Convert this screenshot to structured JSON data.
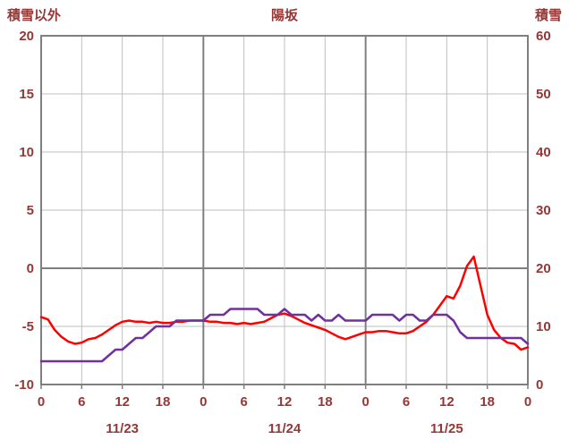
{
  "header": {
    "left_axis_title": "積雪以外",
    "chart_title": "陽坂",
    "right_axis_title": "積雪"
  },
  "colors": {
    "text": "#953735",
    "grid": "#bfbfbf",
    "axis": "#7f7f7f",
    "series_red": "#ff0000",
    "series_purple": "#7030a0",
    "background": "#ffffff"
  },
  "chart_data": {
    "type": "line",
    "title": "陽坂",
    "left_axis": {
      "label": "積雪以外",
      "min": -10,
      "max": 20,
      "ticks": [
        20,
        15,
        10,
        5,
        0,
        -5,
        -10
      ]
    },
    "right_axis": {
      "label": "積雪",
      "min": 0,
      "max": 60,
      "ticks": [
        60,
        50,
        40,
        30,
        20,
        10,
        0
      ]
    },
    "x_axis": {
      "hours_total": 72,
      "tick_step": 6,
      "tick_labels": [
        "0",
        "6",
        "12",
        "18",
        "0",
        "6",
        "12",
        "18",
        "0",
        "6",
        "12",
        "18",
        "0"
      ],
      "date_labels": [
        {
          "label": "11/23",
          "hour": 12
        },
        {
          "label": "11/24",
          "hour": 36
        },
        {
          "label": "11/25",
          "hour": 60
        }
      ]
    },
    "series": [
      {
        "name": "積雪以外",
        "axis": "left",
        "color": "#ff0000",
        "values": [
          -4.2,
          -4.4,
          -5.3,
          -5.9,
          -6.3,
          -6.5,
          -6.4,
          -6.1,
          -6.0,
          -5.7,
          -5.3,
          -4.9,
          -4.6,
          -4.5,
          -4.6,
          -4.6,
          -4.7,
          -4.6,
          -4.7,
          -4.7,
          -4.6,
          -4.6,
          -4.5,
          -4.5,
          -4.5,
          -4.6,
          -4.6,
          -4.7,
          -4.7,
          -4.8,
          -4.7,
          -4.8,
          -4.7,
          -4.6,
          -4.3,
          -4.0,
          -3.9,
          -4.1,
          -4.4,
          -4.7,
          -4.9,
          -5.1,
          -5.3,
          -5.6,
          -5.9,
          -6.1,
          -5.9,
          -5.7,
          -5.5,
          -5.5,
          -5.4,
          -5.4,
          -5.5,
          -5.6,
          -5.6,
          -5.4,
          -5.0,
          -4.6,
          -4.0,
          -3.2,
          -2.4,
          -2.6,
          -1.5,
          0.2,
          1.0,
          -1.5,
          -4.0,
          -5.3,
          -6.0,
          -6.4,
          -6.5,
          -7.0,
          -6.8
        ]
      },
      {
        "name": "積雪",
        "axis": "right",
        "color": "#7030a0",
        "values": [
          4,
          4,
          4,
          4,
          4,
          4,
          4,
          4,
          4,
          4,
          5,
          6,
          6,
          7,
          8,
          8,
          9,
          10,
          10,
          10,
          11,
          11,
          11,
          11,
          11,
          12,
          12,
          12,
          13,
          13,
          13,
          13,
          13,
          12,
          12,
          12,
          13,
          12,
          12,
          12,
          11,
          12,
          11,
          11,
          12,
          11,
          11,
          11,
          11,
          12,
          12,
          12,
          12,
          11,
          12,
          12,
          11,
          11,
          12,
          12,
          12,
          11,
          9,
          8,
          8,
          8,
          8,
          8,
          8,
          8,
          8,
          8,
          7
        ]
      }
    ]
  }
}
